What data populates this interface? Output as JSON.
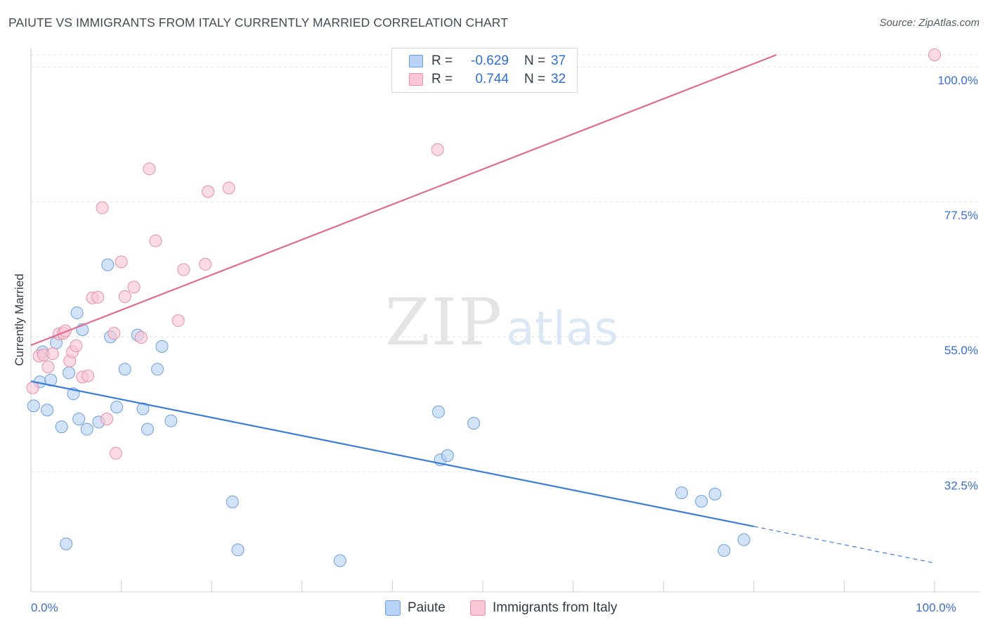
{
  "title": "PAIUTE VS IMMIGRANTS FROM ITALY CURRENTLY MARRIED CORRELATION CHART",
  "source": "Source: ZipAtlas.com",
  "watermark": {
    "zip": "ZIP",
    "atlas": "atlas"
  },
  "legend": {
    "r_label": "R =",
    "n_label": "N =",
    "series": [
      {
        "name": "Paiute",
        "r": "-0.629",
        "n": "37",
        "fill": "#b7d2f4",
        "stroke": "#6d9fdb"
      },
      {
        "name": "Immigrants from Italy",
        "r": "0.744",
        "n": "32",
        "fill": "#f9c6d5",
        "stroke": "#e68fab"
      }
    ]
  },
  "chart_data": {
    "type": "scatter",
    "title": "PAIUTE VS IMMIGRANTS FROM ITALY CURRENTLY MARRIED CORRELATION CHART",
    "xlabel": "",
    "ylabel": "Currently Married",
    "xlim": [
      0,
      100
    ],
    "ylim": [
      12.5,
      102
    ],
    "x_tick_labels": [
      {
        "value": 0,
        "label": "0.0%"
      },
      {
        "value": 100,
        "label": "100.0%"
      }
    ],
    "y_tick_labels": [
      {
        "value": 32.5,
        "label": "32.5%"
      },
      {
        "value": 55.0,
        "label": "55.0%"
      },
      {
        "value": 77.5,
        "label": "77.5%"
      },
      {
        "value": 100.0,
        "label": "100.0%"
      }
    ],
    "grid": true,
    "legend_position": "top-center",
    "series": [
      {
        "name": "Paiute",
        "color": "#3b7dd8",
        "fill": "#b7d2f4",
        "stroke": "#6d9fdb",
        "points": [
          [
            0.3,
            43.5
          ],
          [
            1.0,
            47.5
          ],
          [
            1.3,
            52.5
          ],
          [
            1.8,
            42.8
          ],
          [
            2.2,
            47.8
          ],
          [
            2.8,
            54.0
          ],
          [
            3.4,
            40.0
          ],
          [
            3.9,
            20.5
          ],
          [
            4.2,
            49.0
          ],
          [
            4.7,
            45.5
          ],
          [
            5.1,
            59.0
          ],
          [
            5.3,
            41.3
          ],
          [
            5.7,
            56.2
          ],
          [
            6.2,
            39.6
          ],
          [
            7.5,
            40.8
          ],
          [
            8.5,
            67.0
          ],
          [
            8.8,
            55.0
          ],
          [
            9.5,
            43.3
          ],
          [
            10.4,
            49.6
          ],
          [
            11.8,
            55.3
          ],
          [
            12.4,
            43.0
          ],
          [
            12.9,
            39.6
          ],
          [
            14.0,
            49.6
          ],
          [
            14.5,
            53.4
          ],
          [
            15.5,
            41.0
          ],
          [
            22.3,
            27.5
          ],
          [
            22.9,
            19.5
          ],
          [
            34.2,
            17.7
          ],
          [
            45.1,
            42.5
          ],
          [
            45.3,
            34.5
          ],
          [
            46.1,
            35.2
          ],
          [
            49.0,
            40.6
          ],
          [
            72.0,
            29.0
          ],
          [
            74.2,
            27.6
          ],
          [
            75.7,
            28.8
          ],
          [
            76.7,
            19.4
          ],
          [
            78.9,
            21.2
          ]
        ],
        "trend_line": {
          "x": [
            0,
            80
          ],
          "y": [
            47.6,
            23.4
          ]
        },
        "trend_extension": {
          "x": [
            80,
            100
          ],
          "y": [
            23.4,
            17.3
          ]
        }
      },
      {
        "name": "Immigrants from Italy",
        "color": "#e06b92",
        "fill": "#f9c6d5",
        "stroke": "#e68fab",
        "points": [
          [
            0.2,
            46.5
          ],
          [
            0.9,
            51.8
          ],
          [
            1.4,
            52.0
          ],
          [
            1.9,
            50.0
          ],
          [
            2.4,
            52.2
          ],
          [
            3.1,
            55.5
          ],
          [
            3.6,
            55.6
          ],
          [
            3.8,
            56.0
          ],
          [
            4.3,
            51.0
          ],
          [
            4.6,
            52.5
          ],
          [
            5.0,
            53.5
          ],
          [
            5.7,
            48.3
          ],
          [
            6.3,
            48.5
          ],
          [
            6.8,
            61.5
          ],
          [
            7.4,
            61.6
          ],
          [
            7.9,
            76.5
          ],
          [
            8.4,
            41.3
          ],
          [
            9.2,
            55.6
          ],
          [
            9.4,
            35.6
          ],
          [
            10.0,
            67.5
          ],
          [
            10.4,
            61.7
          ],
          [
            11.4,
            63.3
          ],
          [
            12.2,
            54.9
          ],
          [
            13.1,
            83.0
          ],
          [
            13.8,
            71.0
          ],
          [
            16.3,
            57.7
          ],
          [
            16.9,
            66.2
          ],
          [
            19.3,
            67.1
          ],
          [
            19.6,
            79.2
          ],
          [
            21.9,
            79.8
          ],
          [
            45.0,
            86.2
          ],
          [
            100.0,
            102.0
          ]
        ],
        "trend_line": {
          "x": [
            0,
            82.5
          ],
          "y": [
            53.6,
            102.0
          ]
        }
      }
    ]
  }
}
